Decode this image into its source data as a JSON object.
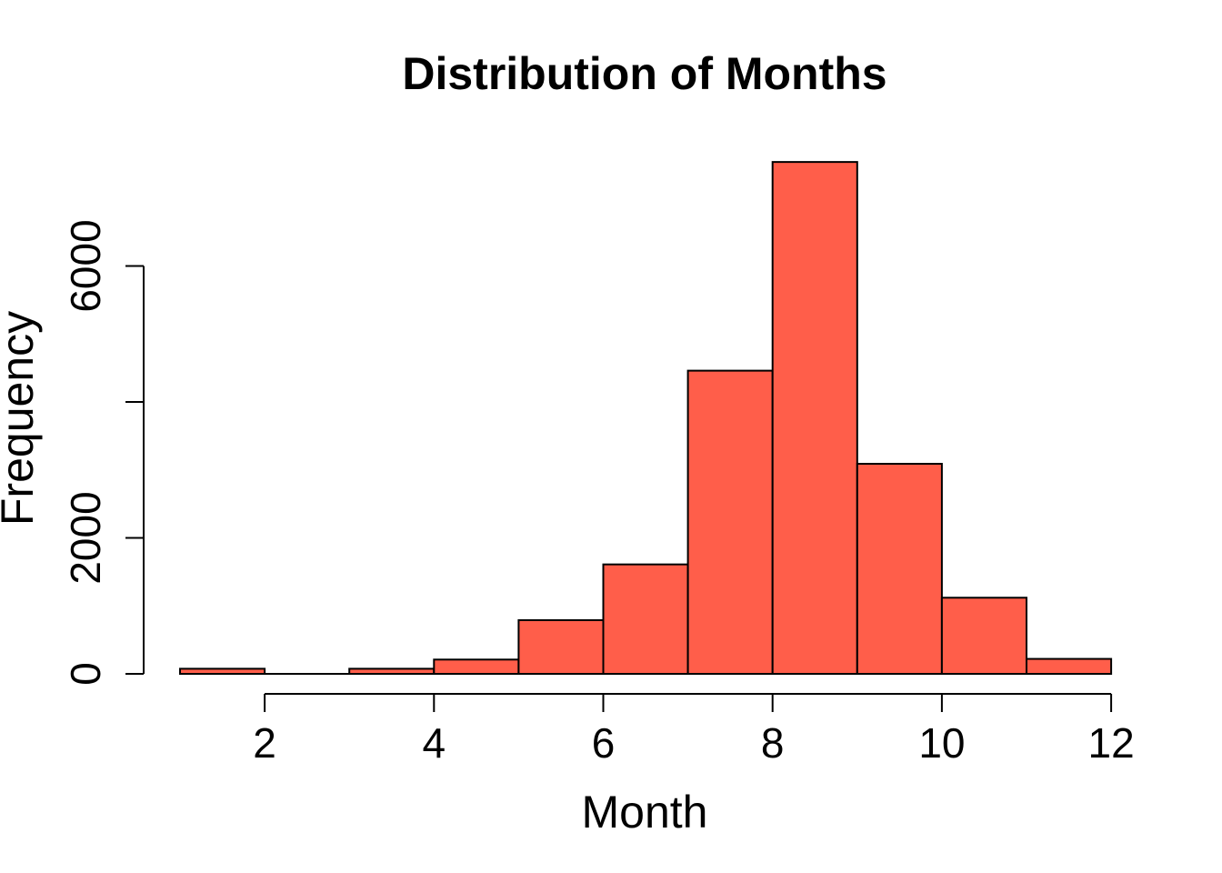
{
  "chart_data": {
    "type": "bar",
    "title": "Distribution of Months",
    "xlabel": "Month",
    "ylabel": "Frequency",
    "bar_color": "#FF5E4A",
    "bins": [
      {
        "start": 1,
        "end": 2,
        "value": 75
      },
      {
        "start": 2,
        "end": 3,
        "value": 0
      },
      {
        "start": 3,
        "end": 4,
        "value": 75
      },
      {
        "start": 4,
        "end": 5,
        "value": 210
      },
      {
        "start": 5,
        "end": 6,
        "value": 790
      },
      {
        "start": 6,
        "end": 7,
        "value": 1610
      },
      {
        "start": 7,
        "end": 8,
        "value": 4460
      },
      {
        "start": 8,
        "end": 9,
        "value": 7530
      },
      {
        "start": 9,
        "end": 10,
        "value": 3090
      },
      {
        "start": 10,
        "end": 11,
        "value": 1120
      },
      {
        "start": 11,
        "end": 12,
        "value": 220
      }
    ],
    "x_ticks": [
      2,
      4,
      6,
      8,
      10,
      12
    ],
    "x_tick_labels": [
      "2",
      "4",
      "6",
      "8",
      "10",
      "12"
    ],
    "y_ticks": [
      0,
      2000,
      4000,
      6000
    ],
    "y_tick_labels": [
      "0",
      "2000",
      "",
      "6000"
    ],
    "xlim": [
      1,
      12
    ],
    "ylim": [
      0,
      7530
    ],
    "grid": false,
    "legend": "none"
  }
}
